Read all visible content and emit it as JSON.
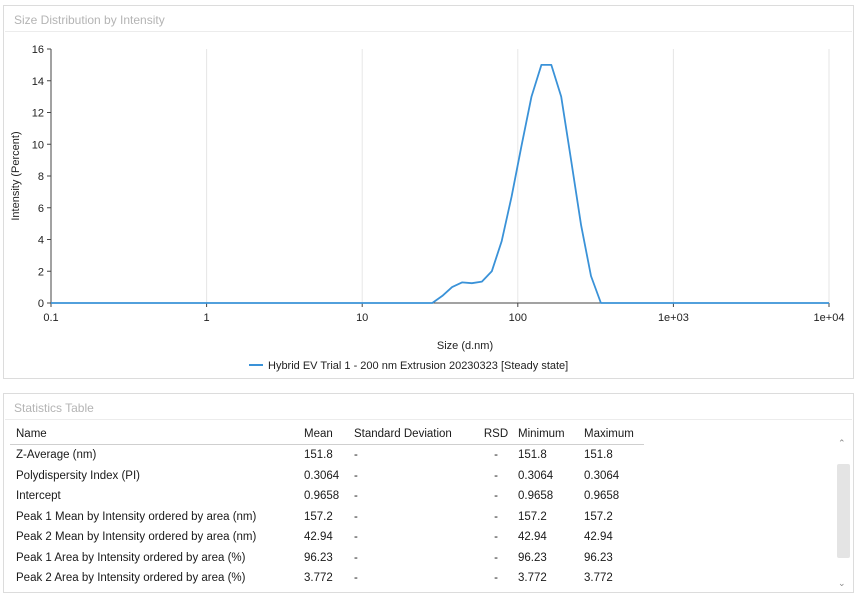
{
  "chart_panel": {
    "title": "Size Distribution by Intensity"
  },
  "stats_panel": {
    "title": "Statistics Table"
  },
  "chart_data": {
    "type": "line",
    "title": "Size Distribution by Intensity",
    "xlabel": "Size (d.nm)",
    "ylabel": "Intensity (Percent)",
    "x_scale": "log",
    "xlim": [
      0.1,
      10000
    ],
    "ylim": [
      0,
      16
    ],
    "x_ticks": [
      {
        "value": 0.1,
        "label": "0.1"
      },
      {
        "value": 1,
        "label": "1"
      },
      {
        "value": 10,
        "label": "10"
      },
      {
        "value": 100,
        "label": "100"
      },
      {
        "value": 1000,
        "label": "1e+03"
      },
      {
        "value": 10000,
        "label": "1e+04"
      }
    ],
    "y_ticks": [
      0,
      2,
      4,
      6,
      8,
      10,
      12,
      14,
      16
    ],
    "grid": "vertical",
    "legend_position": "bottom",
    "series": [
      {
        "name": "Hybrid EV Trial 1 - 200 nm Extrusion 20230323 [Steady state]",
        "color": "#3a92d8",
        "x": [
          0.1,
          28.2,
          32.7,
          37.8,
          43.8,
          50.7,
          58.8,
          68.1,
          78.8,
          91.3,
          105.7,
          122.4,
          141.8,
          164.2,
          190.1,
          220.2,
          255.0,
          295.3,
          342.0,
          396.1,
          10000
        ],
        "y": [
          0,
          0,
          0.45,
          1.0,
          1.3,
          1.25,
          1.35,
          2.0,
          3.9,
          6.7,
          9.9,
          13.0,
          15.0,
          15.0,
          13.0,
          9.0,
          4.9,
          1.7,
          0,
          0,
          0
        ]
      }
    ]
  },
  "stats_table": {
    "columns": [
      "Name",
      "Mean",
      "Standard Deviation",
      "RSD",
      "Minimum",
      "Maximum"
    ],
    "rows": [
      [
        "Z-Average (nm)",
        "151.8",
        "-",
        "-",
        "151.8",
        "151.8"
      ],
      [
        "Polydispersity Index (PI)",
        "0.3064",
        "-",
        "-",
        "0.3064",
        "0.3064"
      ],
      [
        "Intercept",
        "0.9658",
        "-",
        "-",
        "0.9658",
        "0.9658"
      ],
      [
        "Peak 1 Mean by Intensity ordered by area (nm)",
        "157.2",
        "-",
        "-",
        "157.2",
        "157.2"
      ],
      [
        "Peak 2 Mean by Intensity ordered by area (nm)",
        "42.94",
        "-",
        "-",
        "42.94",
        "42.94"
      ],
      [
        "Peak 1 Area by Intensity ordered by area (%)",
        "96.23",
        "-",
        "-",
        "96.23",
        "96.23"
      ],
      [
        "Peak 2 Area by Intensity ordered by area (%)",
        "3.772",
        "-",
        "-",
        "3.772",
        "3.772"
      ]
    ]
  },
  "icons": {
    "scroll_up": "chevron-up-icon",
    "scroll_down": "chevron-down-icon"
  }
}
